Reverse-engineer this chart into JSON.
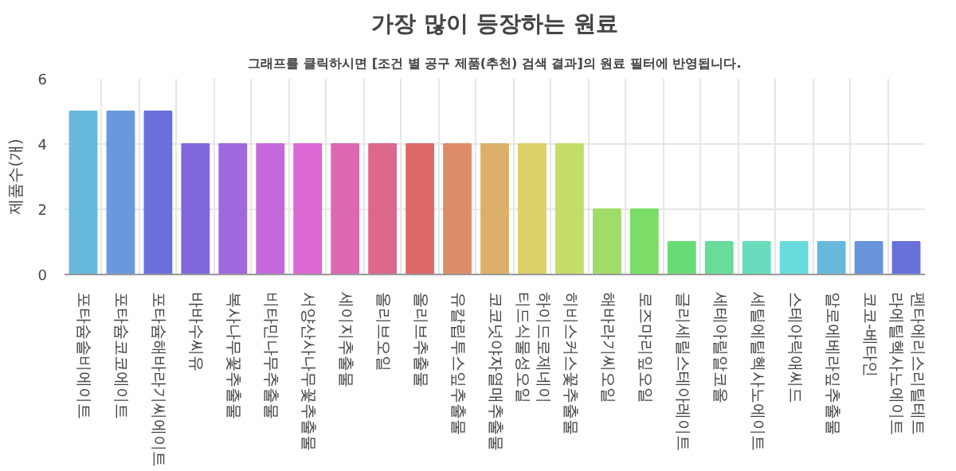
{
  "chart_data": {
    "type": "bar",
    "title": "가장 많이 등장하는 원료",
    "subtitle": "그래프를 클릭하시면 [조건 별 공구 제품(추천) 검색 결과]의 원료 필터에 반영됩니다.",
    "ylabel": "제품수(개)",
    "categories": [
      "포타슘솔비에이트",
      "포타슘코코에이트",
      "포타슘해바라기씨에이트",
      "바바수씨유",
      "복사나무꽃추출물",
      "비타민나무추출물",
      "서양산사나무꽃추출물",
      "세이지추출물",
      "올리브오일",
      "올리브추출물",
      "유칼립투스잎추출물",
      "코코넛야자열매추출물",
      "하이드로제네이티드식물성오일",
      "히비스커스꽃추출물",
      "해바라기씨오일",
      "로즈마리잎오일",
      "글리세릴스테아레이트",
      "세테아릴알코올",
      "세틸에틸헥사노에이트",
      "스테아릭애씨드",
      "알로에베라잎추출물",
      "코코-베타인",
      "펜타에리스리틸테트라에틸헥사노에이트"
    ],
    "values": [
      5,
      5,
      5,
      4,
      4,
      4,
      4,
      4,
      4,
      4,
      4,
      4,
      4,
      4,
      2,
      2,
      1,
      1,
      1,
      1,
      1,
      1,
      1
    ],
    "colors": [
      "#66b8dc",
      "#6a98de",
      "#6a6fdc",
      "#8068dc",
      "#a068dc",
      "#c468dc",
      "#dc68d4",
      "#dc68b0",
      "#dc688c",
      "#dc6868",
      "#dc8c68",
      "#dcb068",
      "#dcd068",
      "#c4dc68",
      "#a0dc68",
      "#7cdc68",
      "#68dc74",
      "#68dc98",
      "#68dcbc",
      "#68dcdc",
      "#68b8dc",
      "#6894dc",
      "#6870dc"
    ],
    "ylim": [
      0,
      6
    ],
    "yticks": [
      0,
      2,
      4,
      6
    ],
    "grid": true
  }
}
